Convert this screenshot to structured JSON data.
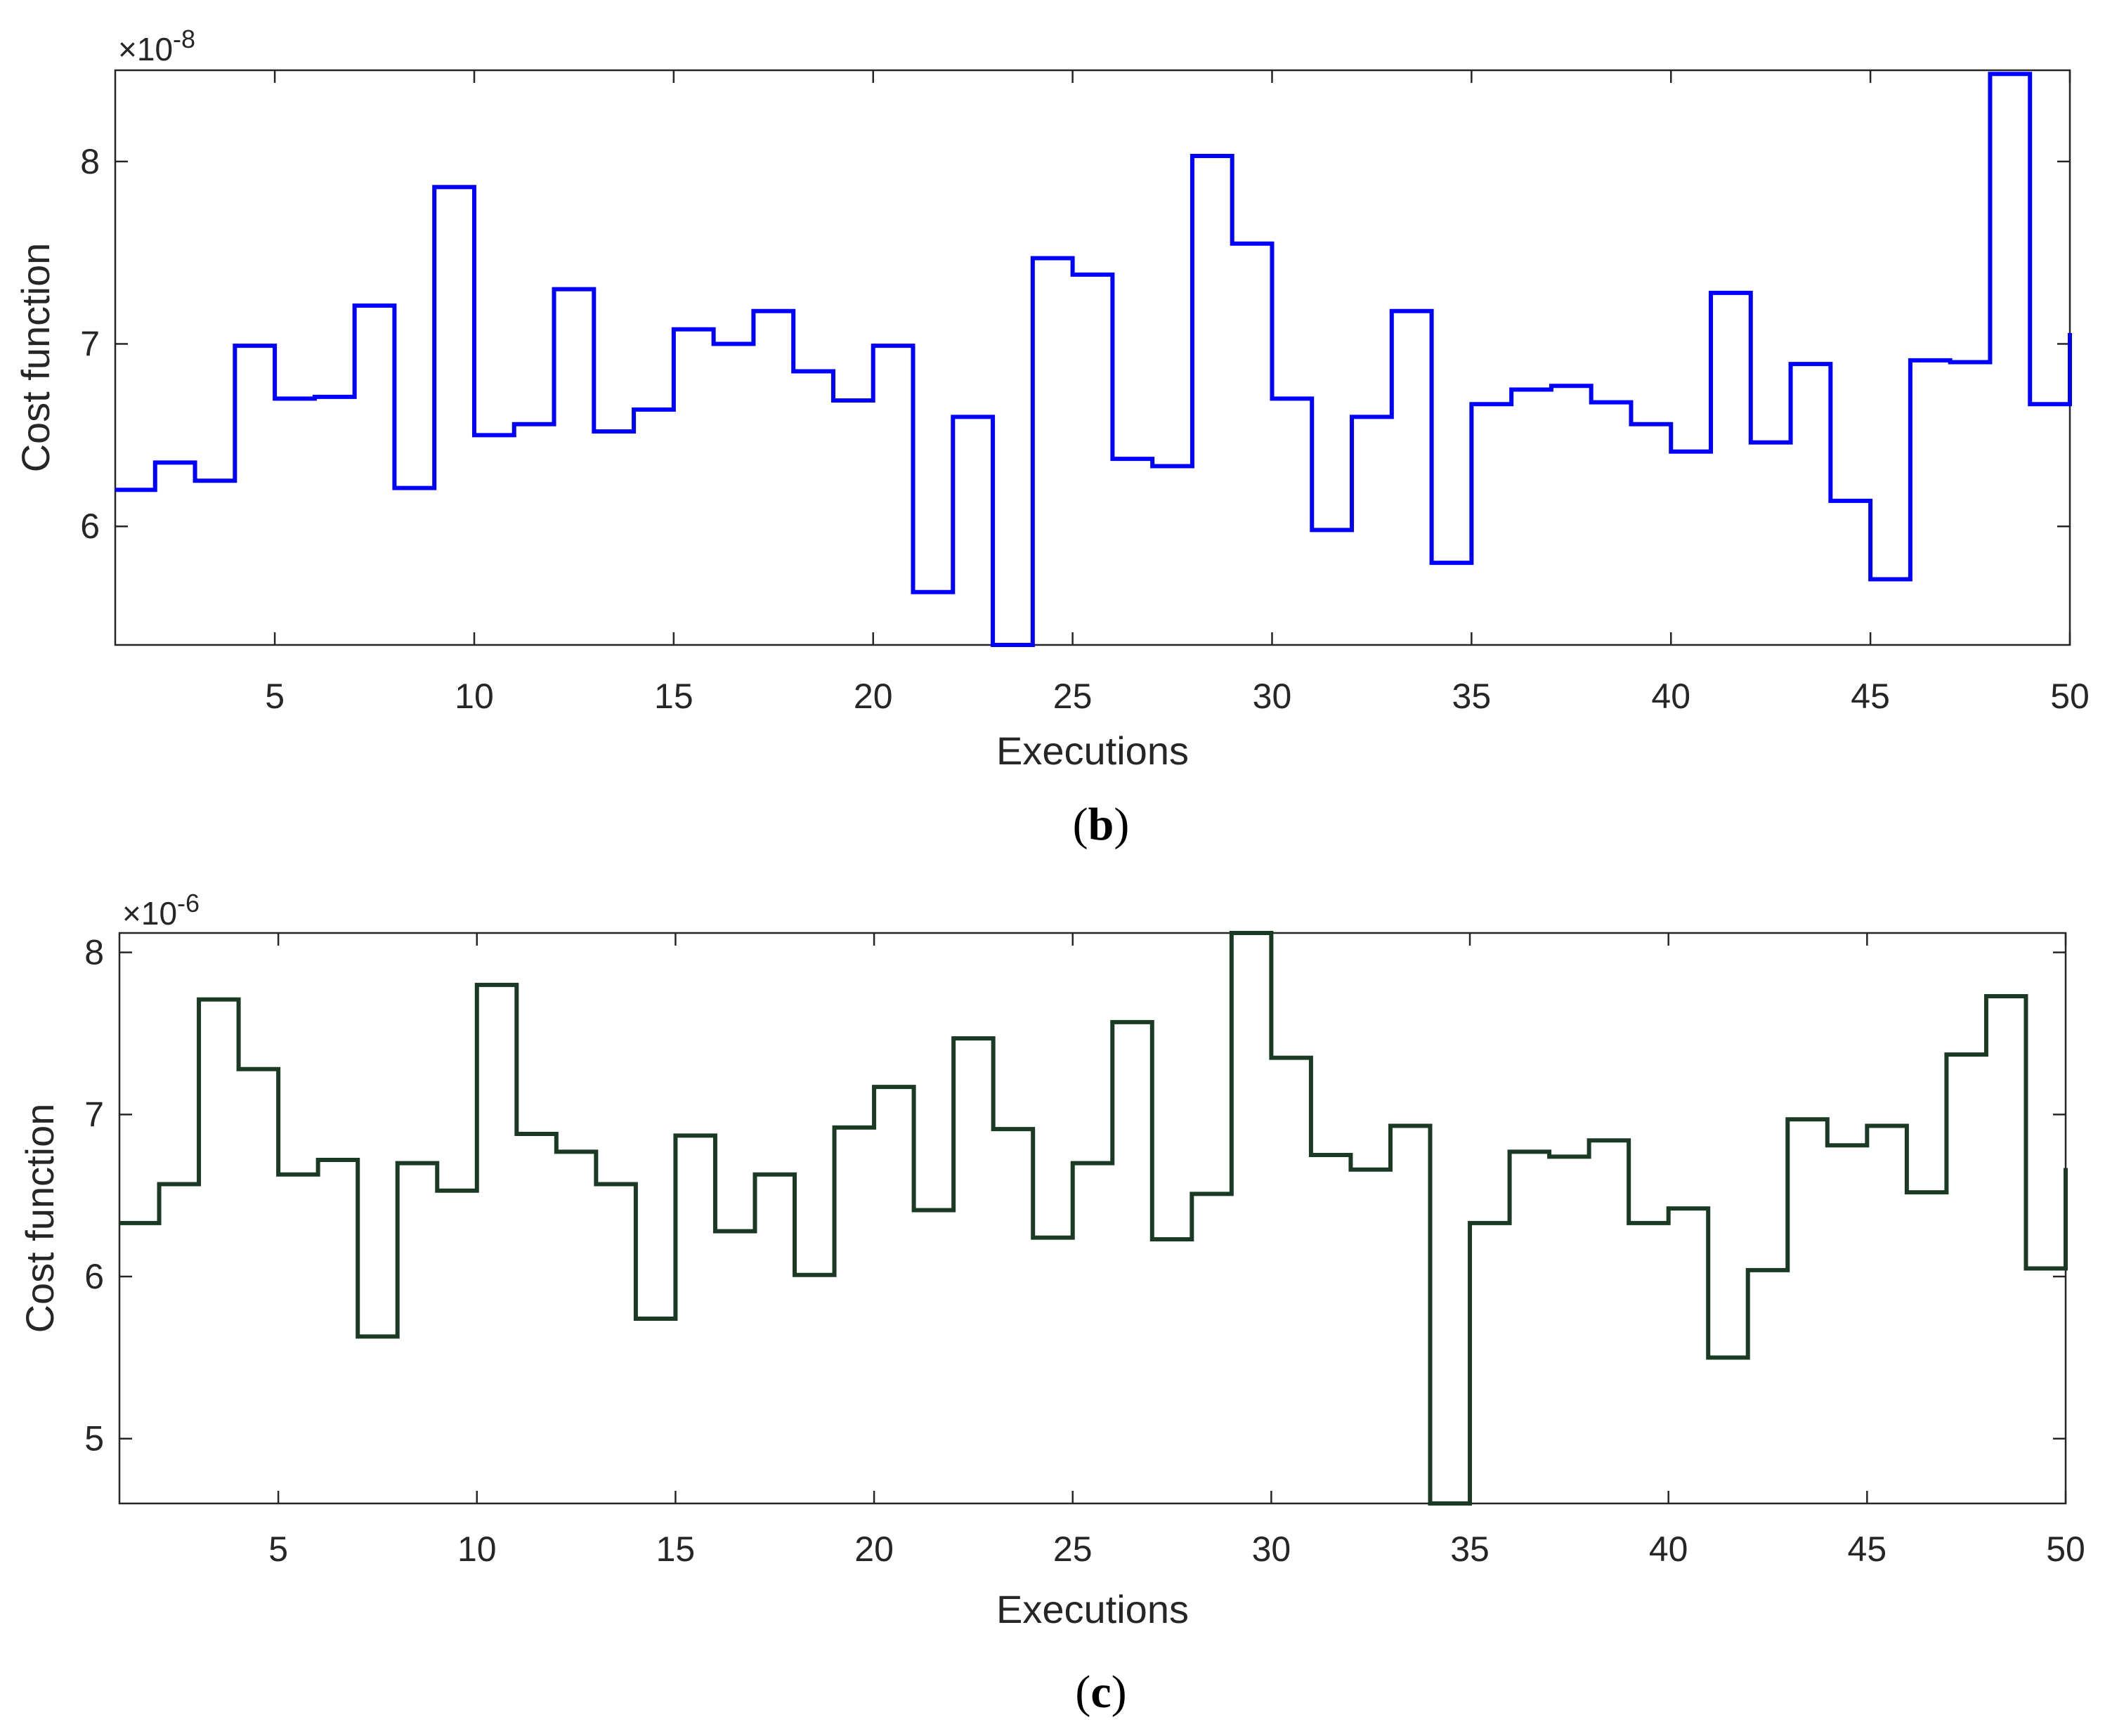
{
  "chart_data": [
    {
      "type": "line",
      "step": true,
      "panel_label": "b",
      "xlabel": "Executions",
      "ylabel": "Cost function",
      "exponent_label": "×10",
      "exponent": "-8",
      "xlim": [
        1,
        50
      ],
      "ylim": [
        5.35,
        8.5
      ],
      "xticks": [
        5,
        10,
        15,
        20,
        25,
        30,
        35,
        40,
        45,
        50
      ],
      "yticks": [
        6,
        7,
        8
      ],
      "color": "#0000ff",
      "x": [
        1,
        2,
        3,
        4,
        5,
        6,
        7,
        8,
        9,
        10,
        11,
        12,
        13,
        14,
        15,
        16,
        17,
        18,
        19,
        20,
        21,
        22,
        23,
        24,
        25,
        26,
        27,
        28,
        29,
        30,
        31,
        32,
        33,
        34,
        35,
        36,
        37,
        38,
        39,
        40,
        41,
        42,
        43,
        44,
        45,
        46,
        47,
        48,
        49,
        50
      ],
      "values": [
        6.2,
        6.35,
        6.25,
        6.99,
        6.7,
        6.71,
        7.21,
        6.21,
        7.86,
        6.5,
        6.56,
        7.3,
        6.52,
        6.64,
        7.08,
        7.0,
        7.18,
        6.85,
        6.69,
        6.99,
        5.64,
        6.6,
        5.35,
        7.47,
        7.38,
        6.37,
        6.33,
        8.03,
        7.55,
        6.7,
        5.98,
        6.6,
        7.18,
        5.8,
        6.67,
        6.75,
        6.77,
        6.68,
        6.56,
        6.41,
        7.28,
        6.46,
        6.89,
        6.14,
        5.71,
        6.91,
        6.9,
        8.48,
        6.67,
        7.06
      ]
    },
    {
      "type": "line",
      "step": true,
      "panel_label": "c",
      "xlabel": "Executions",
      "ylabel": "Cost function",
      "exponent_label": "×10",
      "exponent": "-6",
      "xlim": [
        1,
        50
      ],
      "ylim": [
        4.6,
        8.12
      ],
      "xticks": [
        5,
        10,
        15,
        20,
        25,
        30,
        35,
        40,
        45,
        50
      ],
      "yticks": [
        5,
        6,
        7,
        8
      ],
      "color": "#1a3a24",
      "x": [
        1,
        2,
        3,
        4,
        5,
        6,
        7,
        8,
        9,
        10,
        11,
        12,
        13,
        14,
        15,
        16,
        17,
        18,
        19,
        20,
        21,
        22,
        23,
        24,
        25,
        26,
        27,
        28,
        29,
        30,
        31,
        32,
        33,
        34,
        35,
        36,
        37,
        38,
        39,
        40,
        41,
        42,
        43,
        44,
        45,
        46,
        47,
        48,
        49,
        50
      ],
      "values": [
        6.33,
        6.57,
        7.71,
        7.28,
        6.63,
        6.72,
        5.63,
        6.7,
        6.53,
        7.8,
        6.88,
        6.77,
        6.57,
        5.74,
        6.87,
        6.28,
        6.63,
        6.01,
        6.92,
        7.17,
        6.41,
        7.47,
        6.91,
        6.24,
        6.7,
        7.57,
        6.23,
        6.51,
        8.12,
        7.35,
        6.75,
        6.66,
        6.93,
        4.6,
        6.33,
        6.77,
        6.74,
        6.84,
        6.33,
        6.42,
        5.5,
        6.04,
        6.97,
        6.81,
        6.93,
        6.52,
        7.37,
        7.73,
        6.05,
        6.67
      ]
    }
  ]
}
